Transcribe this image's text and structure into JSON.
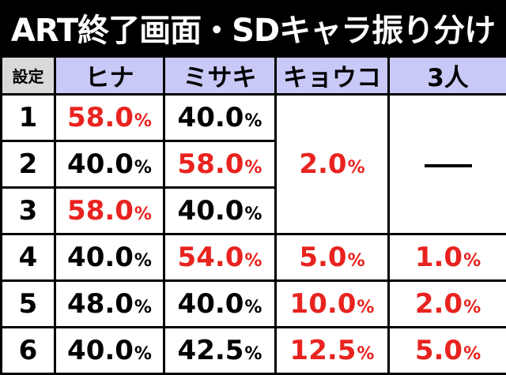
{
  "title": "ART終了画面・SDキャラ振り分け",
  "header": {
    "setting": "設定",
    "columns": [
      "ヒナ",
      "ミサキ",
      "キョウコ",
      "3人"
    ]
  },
  "colors": {
    "red": "#e8231f",
    "black": "#000000",
    "header_bg": "#c9c9f7",
    "setting_header_bg": "#d9d9d9"
  },
  "rows": [
    {
      "setting": "1",
      "hina": "58.0",
      "misaki": "40.0"
    },
    {
      "setting": "2",
      "hina": "40.0",
      "misaki": "58.0"
    },
    {
      "setting": "3",
      "hina": "58.0",
      "misaki": "40.0"
    },
    {
      "setting": "4",
      "hina": "40.0",
      "misaki": "54.0",
      "kyouko": "5.0",
      "sannin": "1.0"
    },
    {
      "setting": "5",
      "hina": "48.0",
      "misaki": "40.0",
      "kyouko": "10.0",
      "sannin": "2.0"
    },
    {
      "setting": "6",
      "hina": "40.0",
      "misaki": "42.5",
      "kyouko": "12.5",
      "sannin": "5.0"
    }
  ],
  "merged": {
    "kyouko_1_3": "2.0",
    "sannin_1_3": "—"
  },
  "unit": "%"
}
